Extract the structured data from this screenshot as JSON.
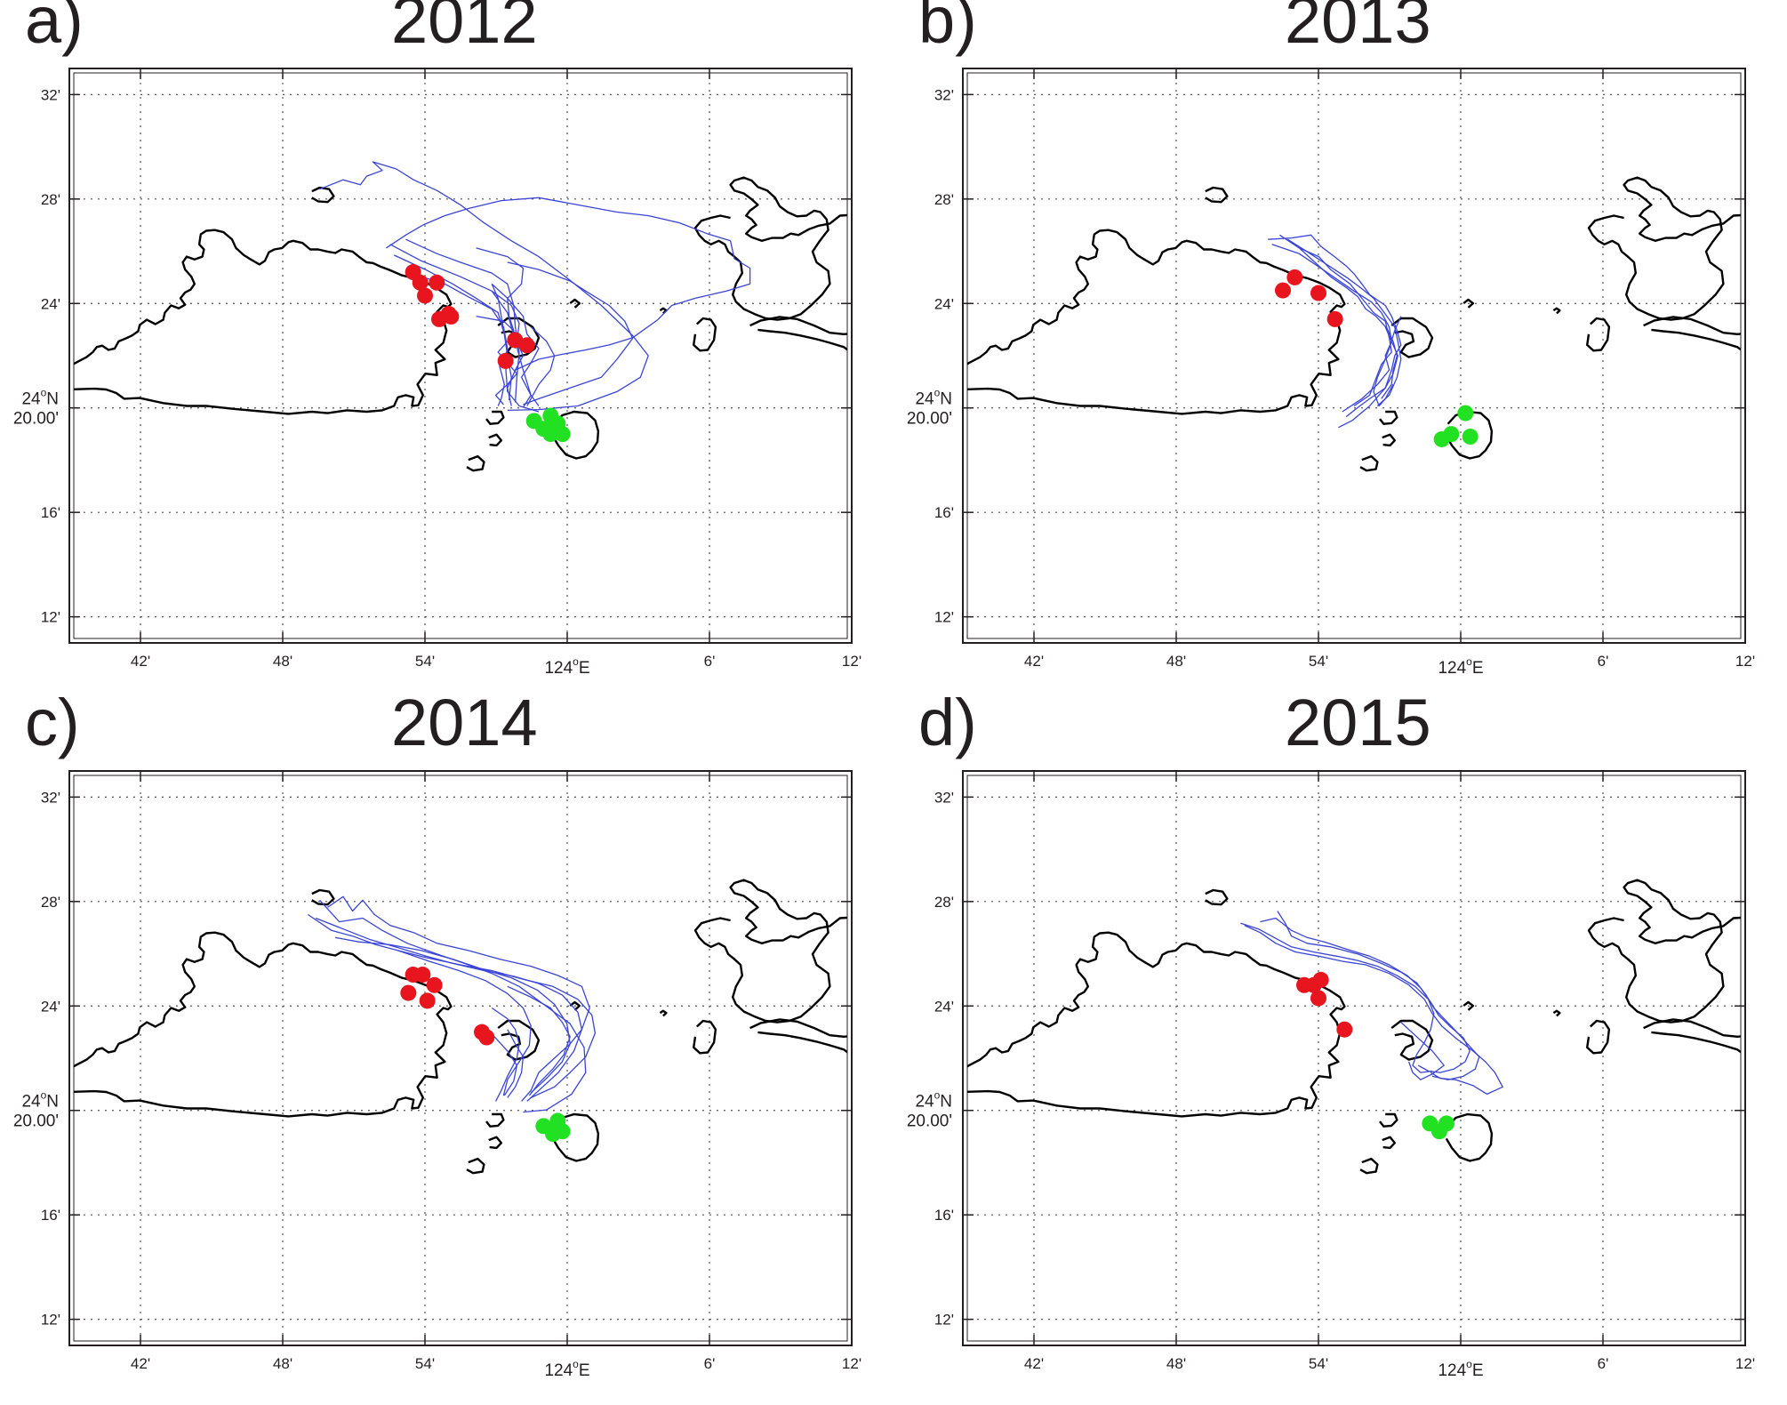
{
  "axes": {
    "lat_ticks": [
      "32'",
      "28'",
      "24'",
      "20.00'",
      "16'",
      "12'"
    ],
    "lat_degree_label": "24",
    "lat_degree_sup": "o",
    "lat_degree_suffix": "N",
    "lon_ticks": [
      "42'",
      "48'",
      "54'",
      "6'",
      "12'"
    ],
    "lon_degree_label": "124",
    "lon_degree_sup": "o",
    "lon_degree_suffix": "E"
  },
  "colors": {
    "coast": "#000000",
    "track": "#3a44d6",
    "start_marker": "#e8141e",
    "end_marker": "#22e022",
    "grid": "#555555"
  },
  "chart_data": [
    {
      "type": "map",
      "panel": "a)",
      "title": "2012",
      "lon_range_min": [
        39,
        72
      ],
      "lat_range_min": [
        11,
        33
      ],
      "start_points": [
        [
          53.5,
          25.2
        ],
        [
          53.8,
          24.8
        ],
        [
          54.0,
          24.3
        ],
        [
          54.5,
          24.8
        ],
        [
          54.6,
          23.4
        ],
        [
          55.0,
          23.6
        ],
        [
          55.1,
          23.5
        ],
        [
          57.8,
          22.6
        ],
        [
          58.3,
          22.4
        ],
        [
          57.4,
          21.8
        ]
      ],
      "end_points": [
        [
          58.6,
          19.5
        ],
        [
          59.0,
          19.2
        ],
        [
          59.3,
          19.0
        ],
        [
          59.6,
          19.4
        ],
        [
          59.3,
          19.7
        ],
        [
          59.8,
          19.0
        ]
      ]
    },
    {
      "type": "map",
      "panel": "b)",
      "title": "2013",
      "lon_range_min": [
        39,
        72
      ],
      "lat_range_min": [
        11,
        33
      ],
      "start_points": [
        [
          52.5,
          24.5
        ],
        [
          53.0,
          25.0
        ],
        [
          54.0,
          24.4
        ],
        [
          54.7,
          23.4
        ]
      ],
      "end_points": [
        [
          59.2,
          18.8
        ],
        [
          59.6,
          19.0
        ],
        [
          60.2,
          19.8
        ],
        [
          60.4,
          18.9
        ]
      ]
    },
    {
      "type": "map",
      "panel": "c)",
      "title": "2014",
      "lon_range_min": [
        39,
        72
      ],
      "lat_range_min": [
        11,
        33
      ],
      "start_points": [
        [
          53.5,
          25.2
        ],
        [
          53.9,
          25.2
        ],
        [
          53.3,
          24.5
        ],
        [
          54.1,
          24.2
        ],
        [
          54.4,
          24.8
        ],
        [
          56.4,
          23.0
        ],
        [
          56.6,
          22.8
        ]
      ],
      "end_points": [
        [
          59.0,
          19.4
        ],
        [
          59.4,
          19.1
        ],
        [
          59.6,
          19.6
        ],
        [
          59.8,
          19.2
        ]
      ]
    },
    {
      "type": "map",
      "panel": "d)",
      "title": "2015",
      "lon_range_min": [
        39,
        72
      ],
      "lat_range_min": [
        11,
        33
      ],
      "start_points": [
        [
          53.4,
          24.8
        ],
        [
          53.8,
          24.8
        ],
        [
          54.0,
          24.3
        ],
        [
          54.1,
          25.0
        ],
        [
          55.1,
          23.1
        ]
      ],
      "end_points": [
        [
          58.7,
          19.5
        ],
        [
          59.1,
          19.2
        ],
        [
          59.4,
          19.5
        ]
      ]
    }
  ]
}
